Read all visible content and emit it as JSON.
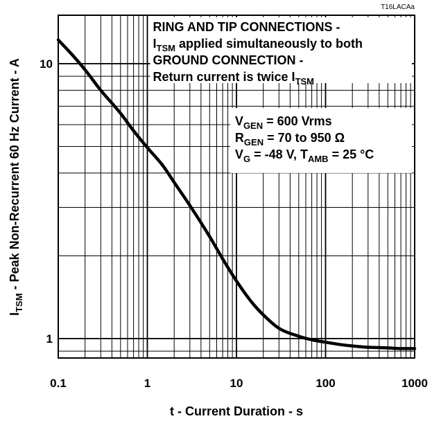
{
  "chart_data": {
    "type": "line",
    "code": "T16LACAa",
    "xlabel": "t - Current Duration - s",
    "ylabel": {
      "main": "I",
      "sub": "TSM",
      "rest": " - Peak Non-Recurrent 60 Hz Current - A"
    },
    "x_scale": "log",
    "y_scale": "log",
    "xlim": [
      0.1,
      1000
    ],
    "ylim": [
      0.85,
      15
    ],
    "grid": true,
    "x_ticks": [
      {
        "value": 0.1,
        "label": "0.1"
      },
      {
        "value": 1,
        "label": "1"
      },
      {
        "value": 10,
        "label": "10"
      },
      {
        "value": 100,
        "label": "100"
      },
      {
        "value": 1000,
        "label": "1000"
      }
    ],
    "y_ticks": [
      {
        "value": 1,
        "label": "1"
      },
      {
        "value": 10,
        "label": "10"
      }
    ],
    "series": [
      {
        "x": [
          0.1,
          0.15,
          0.2,
          0.3,
          0.5,
          0.7,
          1,
          1.5,
          2,
          3,
          5,
          7,
          10,
          15,
          20,
          30,
          50,
          70,
          100,
          150,
          200,
          300,
          500,
          700,
          1000
        ],
        "y": [
          12.2,
          10.6,
          9.5,
          8.0,
          6.6,
          5.7,
          4.95,
          4.25,
          3.7,
          3.05,
          2.35,
          1.95,
          1.62,
          1.35,
          1.22,
          1.09,
          1.02,
          0.99,
          0.97,
          0.95,
          0.94,
          0.93,
          0.925,
          0.92,
          0.92
        ]
      }
    ],
    "annotations": {
      "box1": [
        [
          {
            "t": "RING AND TIP CONNECTIONS -"
          }
        ],
        [
          {
            "t": "I"
          },
          {
            "t": "TSM",
            "sub": true
          },
          {
            "t": " applied simultaneously to both"
          }
        ],
        [
          {
            "t": "GROUND CONNECTION -"
          }
        ],
        [
          {
            "t": "Return current is twice I"
          },
          {
            "t": "TSM",
            "sub": true
          }
        ]
      ],
      "box2": [
        [
          {
            "t": "V"
          },
          {
            "t": "GEN",
            "sub": true
          },
          {
            "t": " = 600 Vrms"
          }
        ],
        [
          {
            "t": "R"
          },
          {
            "t": "GEN",
            "sub": true
          },
          {
            "t": " = 70 to 950 Ω"
          }
        ],
        [
          {
            "t": "V"
          },
          {
            "t": "G",
            "sub": true
          },
          {
            "t": " = -48 V, T"
          },
          {
            "t": "AMB",
            "sub": true
          },
          {
            "t": " = 25 °C"
          }
        ]
      ]
    }
  }
}
